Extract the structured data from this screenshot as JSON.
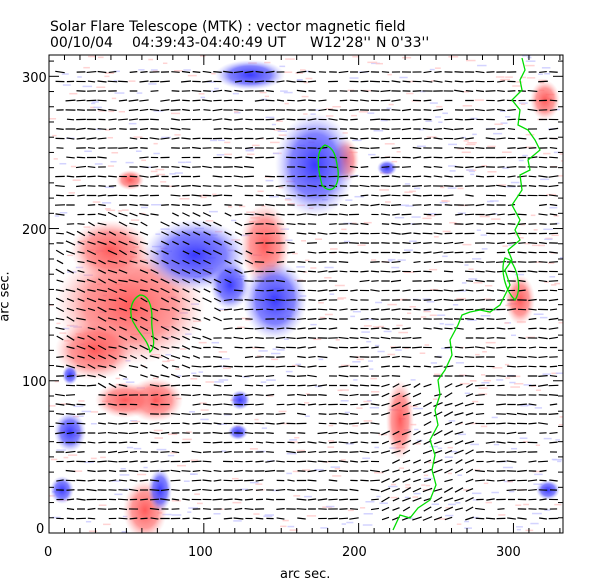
{
  "chart_data": {
    "type": "heatmap",
    "title": "Solar Flare Telescope (MTK) : vector magnetic field",
    "subtitle": {
      "date": "00/10/04",
      "time": "04:39:43-04:40:49 UT",
      "lon": "W12'28''",
      "lat": "N 0'33''"
    },
    "xlabel": "arc sec.",
    "ylabel": "arc sec.",
    "xlim": [
      0,
      332
    ],
    "ylim": [
      0,
      314
    ],
    "xticks": [
      "0",
      "100",
      "200",
      "300"
    ],
    "yticks": [
      "0",
      "100",
      "200",
      "300"
    ],
    "colors": {
      "positive": "#ff6060",
      "negative": "#4a4aff",
      "neutral_line": "#00e000",
      "vectors": "#000000"
    }
  }
}
